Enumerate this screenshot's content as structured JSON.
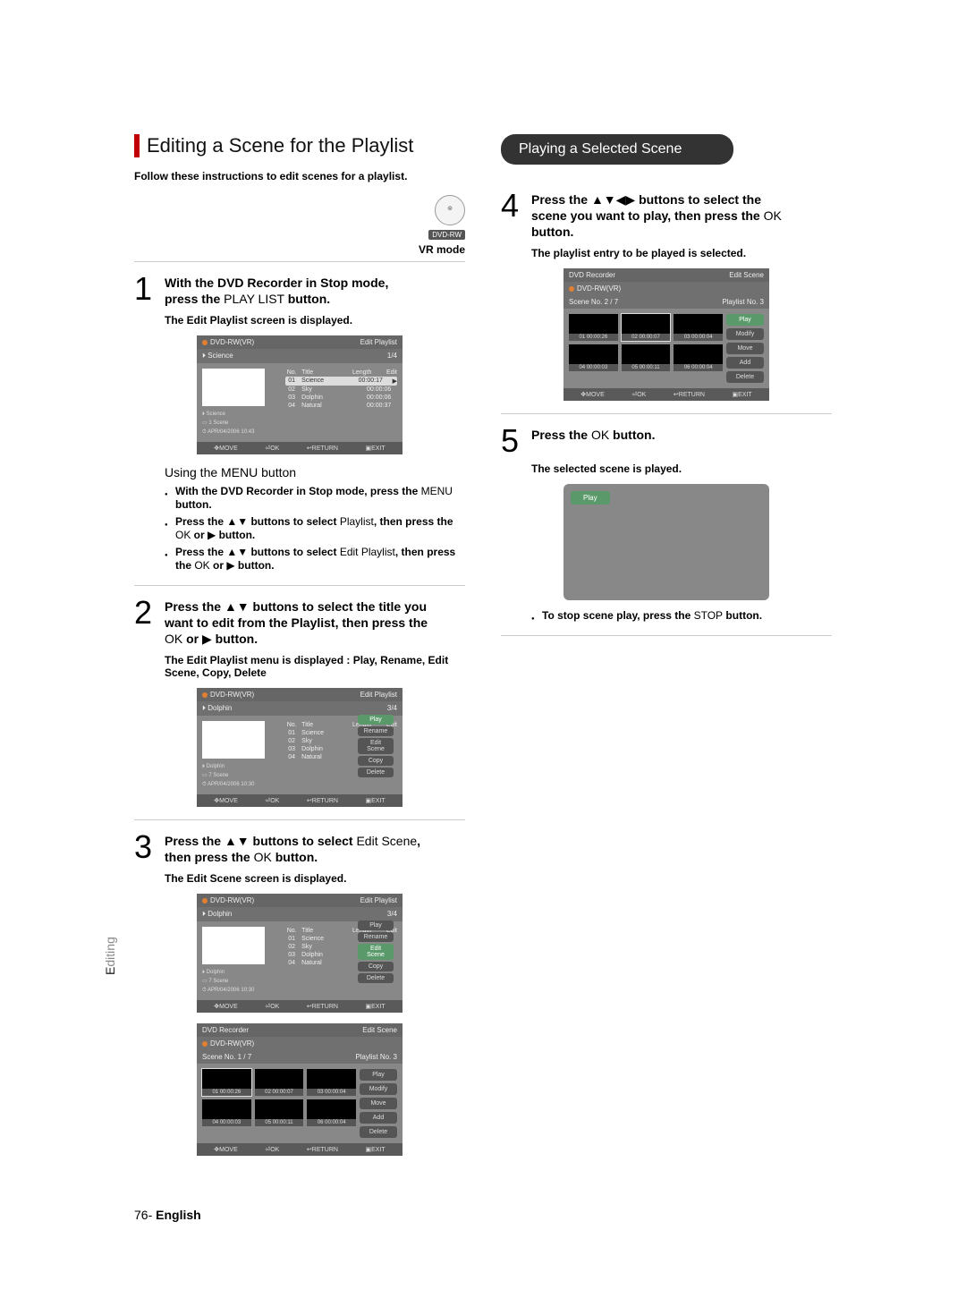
{
  "sidebar": {
    "prefix": "E",
    "label": "diting"
  },
  "footer": {
    "page": "76",
    "sep": "- ",
    "lang": "English"
  },
  "left": {
    "title": "Editing a Scene for the Playlist",
    "follow": "Follow these instructions to edit scenes for a playlist.",
    "dvd_badge_top": "DVD-RW",
    "mode": "VR mode",
    "step1": {
      "num": "1",
      "l1_bold1": "With the DVD Recorder in Stop mode,",
      "l2_bold1": "press the",
      "l2_plain": " PLAY LIST ",
      "l2_bold2": "button.",
      "sub": "The Edit Playlist screen is displayed."
    },
    "ss1": {
      "hdr_left": "DVD-RW(VR)",
      "hdr_right": "Edit Playlist",
      "sub_left": "Science",
      "sub_right": "1/4",
      "info1": "Science",
      "info2": "1 Scene",
      "info3": "APR/04/2006 10:43",
      "cols": {
        "c1": "No.",
        "c2": "Title",
        "c3": "Length",
        "c4": "Edit"
      },
      "rows": [
        {
          "n": "01",
          "t": "Science",
          "len": "00:00:17",
          "sel": true
        },
        {
          "n": "02",
          "t": "Sky",
          "len": "00:00:06"
        },
        {
          "n": "03",
          "t": "Dolphin",
          "len": "00:00:06"
        },
        {
          "n": "04",
          "t": "Natural",
          "len": "00:00:37"
        }
      ],
      "foot": {
        "a": "MOVE",
        "b": "OK",
        "c": "RETURN",
        "d": "EXIT"
      }
    },
    "using": "Using the MENU button",
    "bullets1": [
      {
        "b1": "With the DVD Recorder in Stop mode, press the ",
        "p1": "MENU",
        "b2": " button."
      },
      {
        "b1": "Press the ",
        "p1": "▲▼",
        "b2": " buttons to select ",
        "p2": "Playlist",
        "b3": ", then press the ",
        "p3": "OK",
        "b4": " or ",
        "p4": "▶",
        "b5": " button."
      },
      {
        "b1": "Press the ",
        "p1": "▲▼",
        "b2": " buttons to select ",
        "p2": "Edit Playlist",
        "b3": ", then press the ",
        "p3": "OK",
        "b4": " or ",
        "p4": "▶",
        "b5": " button."
      }
    ],
    "step2": {
      "num": "2",
      "l1_b1": "Press the ",
      "l1_p1": "▲▼",
      "l1_b2": " buttons to select the title you",
      "l2_b1": "want to edit from the Playlist, then press the",
      "l3_p1": "OK ",
      "l3_b1": "or ",
      "l3_p2": "▶",
      "l3_b2": " button.",
      "sub": "The Edit Playlist menu is displayed : Play, Rename, Edit Scene, Copy, Delete"
    },
    "ss2": {
      "hdr_left": "DVD-RW(VR)",
      "hdr_right": "Edit Playlist",
      "sub_left": "Dolphin",
      "sub_right": "3/4",
      "info1": "Dolphin",
      "info2": "7 Scene",
      "info3": "APR/04/2006 10:30",
      "rows": [
        {
          "n": "01",
          "t": "Science",
          "len": "00:00:17"
        },
        {
          "n": "02",
          "t": "Sky",
          "len": ""
        },
        {
          "n": "03",
          "t": "Dolphin",
          "len": ""
        },
        {
          "n": "04",
          "t": "Natural",
          "len": ""
        }
      ],
      "menu": [
        "Play",
        "Rename",
        "Edit Scene",
        "Copy",
        "Delete"
      ],
      "foot": {
        "a": "MOVE",
        "b": "OK",
        "c": "RETURN",
        "d": "EXIT"
      }
    },
    "step3": {
      "num": "3",
      "l1_b1": "Press the ",
      "l1_p1": "▲▼",
      "l1_b2": " buttons to select ",
      "l1_p2": "Edit Scene",
      "l1_b3": ",",
      "l2_b1": "then press the ",
      "l2_p1": "OK",
      "l2_b2": " button.",
      "sub": "The Edit Scene screen is displayed."
    },
    "ss3a": {
      "hdr_left": "DVD-RW(VR)",
      "hdr_right": "Edit Playlist",
      "sub_left": "Dolphin",
      "sub_right": "3/4",
      "info1": "Dolphin",
      "info2": "7 Scene",
      "info3": "APR/04/2006 10:30",
      "rows": [
        {
          "n": "01",
          "t": "Science",
          "len": "00:00:17"
        },
        {
          "n": "02",
          "t": "Sky",
          "len": ""
        },
        {
          "n": "03",
          "t": "Dolphin",
          "len": ""
        },
        {
          "n": "04",
          "t": "Natural",
          "len": ""
        }
      ],
      "menu": [
        "Play",
        "Rename",
        "Edit Scene",
        "Copy",
        "Delete"
      ],
      "menu_active": 2,
      "foot": {
        "a": "MOVE",
        "b": "OK",
        "c": "RETURN",
        "d": "EXIT"
      }
    },
    "ss3b": {
      "hdr_left": "DVD Recorder",
      "hdr_right": "Edit Scene",
      "sub_left": "DVD-RW(VR)",
      "sub_mid": "Scene No.   1 / 7",
      "sub_right": "Playlist No.   3",
      "cells": [
        {
          "n": "01",
          "t": "00:00:26",
          "sel": true
        },
        {
          "n": "02",
          "t": "00:00:07"
        },
        {
          "n": "03",
          "t": "00:00:04"
        },
        {
          "n": "04",
          "t": "00:00:03"
        },
        {
          "n": "05",
          "t": "00:00:11"
        },
        {
          "n": "06",
          "t": "00:00:04"
        }
      ],
      "side": [
        "Play",
        "Modify",
        "Move",
        "Add",
        "Delete"
      ],
      "foot": {
        "a": "MOVE",
        "b": "OK",
        "c": "RETURN",
        "d": "EXIT"
      }
    }
  },
  "right": {
    "pill": "Playing a Selected Scene",
    "step4": {
      "num": "4",
      "l1_b1": "Press the ",
      "l1_p1": "▲▼◀▶",
      "l1_b2": " buttons to select the",
      "l2_b1": "scene you want to play, then press the ",
      "l2_p1": "OK",
      "l3_b1": "button.",
      "sub": "The playlist entry to be played is selected."
    },
    "ss4": {
      "hdr_left": "DVD Recorder",
      "hdr_right": "Edit Scene",
      "sub_left": "DVD-RW(VR)",
      "sub_mid": "Scene No.   2 / 7",
      "sub_right": "Playlist No.   3",
      "cells": [
        {
          "n": "01",
          "t": "00:00:26"
        },
        {
          "n": "02",
          "t": "00:00:07",
          "sel": true
        },
        {
          "n": "03",
          "t": "00:00:04"
        },
        {
          "n": "04",
          "t": "00:00:03"
        },
        {
          "n": "05",
          "t": "00:00:11"
        },
        {
          "n": "06",
          "t": "00:00:04"
        }
      ],
      "side": [
        "Play",
        "Modify",
        "Move",
        "Add",
        "Delete"
      ],
      "side_active": 0,
      "foot": {
        "a": "MOVE",
        "b": "OK",
        "c": "RETURN",
        "d": "EXIT"
      }
    },
    "step5": {
      "num": "5",
      "l1_b1": "Press the ",
      "l1_p1": "OK",
      "l1_b2": " button.",
      "sub": "The selected scene is played."
    },
    "play_tag": "Play",
    "bullet_stop": {
      "b1": "To stop scene play, press the ",
      "p1": "STOP",
      "b2": " button."
    }
  }
}
